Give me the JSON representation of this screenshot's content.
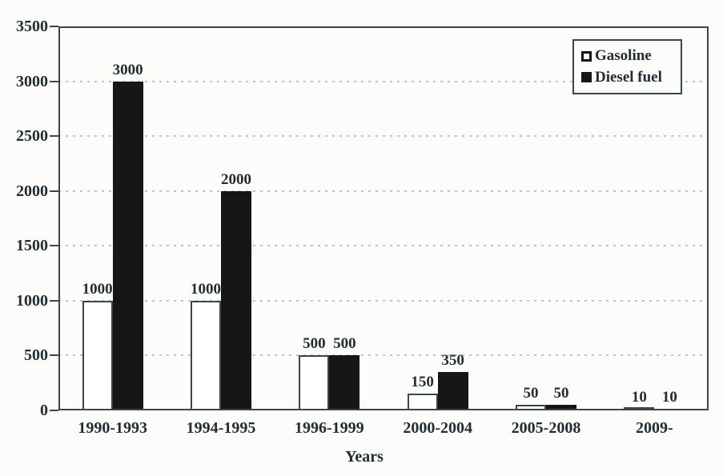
{
  "chart_data": {
    "type": "bar",
    "title": "",
    "categories": [
      "1990-1993",
      "1994-1995",
      "1996-1999",
      "2000-2004",
      "2005-2008",
      "2009-"
    ],
    "series": [
      {
        "name": "Gasoline",
        "style": "open",
        "values": [
          1000,
          1000,
          500,
          150,
          50,
          10
        ]
      },
      {
        "name": "Diesel fuel",
        "style": "solid",
        "values": [
          3000,
          2000,
          500,
          350,
          50,
          10
        ]
      }
    ],
    "xlabel": "Years",
    "ylabel": "",
    "ylim": [
      0,
      3500
    ],
    "ytick_step": 500,
    "yticks": [
      "0",
      "500",
      "1000",
      "1500",
      "2000",
      "2500",
      "3000",
      "3500"
    ],
    "grid": "horizontal dotted lines at every 500",
    "legend_position": "top-right inside plot",
    "bar_value_labels": true
  },
  "colors": {
    "ink": "#232d34",
    "line": "#3a454e",
    "grid": "#b7c5cf",
    "bar_solid": "#161616",
    "bar_open": "#ffffff",
    "background": "#fcfcfa"
  }
}
